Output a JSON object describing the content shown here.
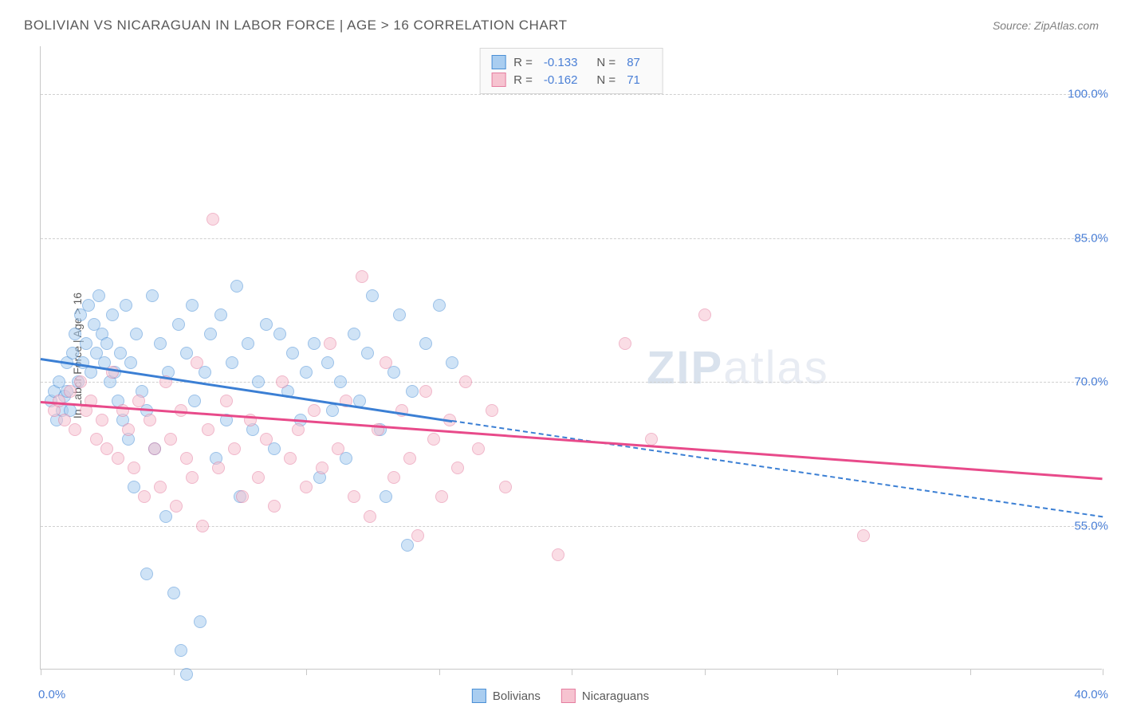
{
  "title": "BOLIVIAN VS NICARAGUAN IN LABOR FORCE | AGE > 16 CORRELATION CHART",
  "source_label": "Source:",
  "source_value": "ZipAtlas.com",
  "ylabel": "In Labor Force | Age > 16",
  "watermark_bold": "ZIP",
  "watermark_rest": "atlas",
  "chart": {
    "type": "scatter",
    "background_color": "#ffffff",
    "grid_color": "#d0d0d0",
    "axis_color": "#c8c8c8",
    "tick_label_color": "#4a7fd6",
    "tick_fontsize": 15,
    "label_fontsize": 14,
    "title_fontsize": 17,
    "xlim": [
      0,
      40
    ],
    "ylim": [
      40,
      105
    ],
    "ytick_values": [
      55,
      70,
      85,
      100
    ],
    "ytick_labels": [
      "55.0%",
      "70.0%",
      "85.0%",
      "100.0%"
    ],
    "xtick_values": [
      0,
      5,
      10,
      15,
      20,
      25,
      30,
      35,
      40
    ],
    "xtick_labels_shown": {
      "0": "0.0%",
      "40": "40.0%"
    },
    "marker_radius": 8,
    "marker_opacity": 0.55,
    "series": [
      {
        "name": "Bolivians",
        "fill_color": "#a9cdf0",
        "stroke_color": "#4a8fd6",
        "trend_color": "#3b7fd4",
        "legend_stats": {
          "R": "-0.133",
          "N": "87"
        },
        "trend": {
          "x1": 0,
          "y1": 72.5,
          "x2": 15.5,
          "y2": 66.0,
          "style": "solid"
        },
        "trend_ext": {
          "x1": 15.5,
          "y1": 66.0,
          "x2": 40,
          "y2": 56.0,
          "style": "dashed"
        },
        "points": [
          [
            0.4,
            68
          ],
          [
            0.5,
            69
          ],
          [
            0.6,
            66
          ],
          [
            0.7,
            70
          ],
          [
            0.8,
            67
          ],
          [
            0.9,
            68.5
          ],
          [
            1.0,
            72
          ],
          [
            1.0,
            69
          ],
          [
            1.1,
            67
          ],
          [
            1.2,
            73
          ],
          [
            1.3,
            75
          ],
          [
            1.4,
            70
          ],
          [
            1.5,
            77
          ],
          [
            1.6,
            72
          ],
          [
            1.7,
            74
          ],
          [
            1.8,
            78
          ],
          [
            1.9,
            71
          ],
          [
            2.0,
            76
          ],
          [
            2.1,
            73
          ],
          [
            2.2,
            79
          ],
          [
            2.3,
            75
          ],
          [
            2.4,
            72
          ],
          [
            2.5,
            74
          ],
          [
            2.6,
            70
          ],
          [
            2.7,
            77
          ],
          [
            2.8,
            71
          ],
          [
            2.9,
            68
          ],
          [
            3.0,
            73
          ],
          [
            3.1,
            66
          ],
          [
            3.2,
            78
          ],
          [
            3.3,
            64
          ],
          [
            3.4,
            72
          ],
          [
            3.5,
            59
          ],
          [
            3.6,
            75
          ],
          [
            3.8,
            69
          ],
          [
            4.0,
            67
          ],
          [
            4.2,
            79
          ],
          [
            4.3,
            63
          ],
          [
            4.5,
            74
          ],
          [
            4.7,
            56
          ],
          [
            4.8,
            71
          ],
          [
            5.0,
            48
          ],
          [
            5.2,
            76
          ],
          [
            5.3,
            42
          ],
          [
            5.5,
            73
          ],
          [
            5.7,
            78
          ],
          [
            5.8,
            68
          ],
          [
            6.0,
            45
          ],
          [
            6.2,
            71
          ],
          [
            6.4,
            75
          ],
          [
            6.6,
            62
          ],
          [
            6.8,
            77
          ],
          [
            7.0,
            66
          ],
          [
            7.2,
            72
          ],
          [
            7.4,
            80
          ],
          [
            7.5,
            58
          ],
          [
            7.8,
            74
          ],
          [
            8.0,
            65
          ],
          [
            8.2,
            70
          ],
          [
            8.5,
            76
          ],
          [
            8.8,
            63
          ],
          [
            9.0,
            75
          ],
          [
            9.3,
            69
          ],
          [
            9.5,
            73
          ],
          [
            9.8,
            66
          ],
          [
            10.0,
            71
          ],
          [
            10.3,
            74
          ],
          [
            10.5,
            60
          ],
          [
            10.8,
            72
          ],
          [
            11.0,
            67
          ],
          [
            11.3,
            70
          ],
          [
            11.5,
            62
          ],
          [
            11.8,
            75
          ],
          [
            12.0,
            68
          ],
          [
            12.3,
            73
          ],
          [
            12.5,
            79
          ],
          [
            12.8,
            65
          ],
          [
            13.0,
            58
          ],
          [
            13.3,
            71
          ],
          [
            13.5,
            77
          ],
          [
            13.8,
            53
          ],
          [
            14.0,
            69
          ],
          [
            14.5,
            74
          ],
          [
            15.0,
            78
          ],
          [
            15.5,
            72
          ],
          [
            4.0,
            50
          ],
          [
            5.5,
            39.5
          ]
        ]
      },
      {
        "name": "Nicaraguans",
        "fill_color": "#f6c3d0",
        "stroke_color": "#e57da0",
        "trend_color": "#e84a8a",
        "legend_stats": {
          "R": "-0.162",
          "N": "71"
        },
        "trend": {
          "x1": 0,
          "y1": 68.0,
          "x2": 40,
          "y2": 60.0,
          "style": "solid"
        },
        "points": [
          [
            0.5,
            67
          ],
          [
            0.7,
            68
          ],
          [
            0.9,
            66
          ],
          [
            1.1,
            69
          ],
          [
            1.3,
            65
          ],
          [
            1.5,
            70
          ],
          [
            1.7,
            67
          ],
          [
            1.9,
            68
          ],
          [
            2.1,
            64
          ],
          [
            2.3,
            66
          ],
          [
            2.5,
            63
          ],
          [
            2.7,
            71
          ],
          [
            2.9,
            62
          ],
          [
            3.1,
            67
          ],
          [
            3.3,
            65
          ],
          [
            3.5,
            61
          ],
          [
            3.7,
            68
          ],
          [
            3.9,
            58
          ],
          [
            4.1,
            66
          ],
          [
            4.3,
            63
          ],
          [
            4.5,
            59
          ],
          [
            4.7,
            70
          ],
          [
            4.9,
            64
          ],
          [
            5.1,
            57
          ],
          [
            5.3,
            67
          ],
          [
            5.5,
            62
          ],
          [
            5.7,
            60
          ],
          [
            5.9,
            72
          ],
          [
            6.1,
            55
          ],
          [
            6.3,
            65
          ],
          [
            6.5,
            87
          ],
          [
            6.7,
            61
          ],
          [
            7.0,
            68
          ],
          [
            7.3,
            63
          ],
          [
            7.6,
            58
          ],
          [
            7.9,
            66
          ],
          [
            8.2,
            60
          ],
          [
            8.5,
            64
          ],
          [
            8.8,
            57
          ],
          [
            9.1,
            70
          ],
          [
            9.4,
            62
          ],
          [
            9.7,
            65
          ],
          [
            10.0,
            59
          ],
          [
            10.3,
            67
          ],
          [
            10.6,
            61
          ],
          [
            10.9,
            74
          ],
          [
            11.2,
            63
          ],
          [
            11.5,
            68
          ],
          [
            11.8,
            58
          ],
          [
            12.1,
            81
          ],
          [
            12.4,
            56
          ],
          [
            12.7,
            65
          ],
          [
            13.0,
            72
          ],
          [
            13.3,
            60
          ],
          [
            13.6,
            67
          ],
          [
            13.9,
            62
          ],
          [
            14.2,
            54
          ],
          [
            14.5,
            69
          ],
          [
            14.8,
            64
          ],
          [
            15.1,
            58
          ],
          [
            15.4,
            66
          ],
          [
            15.7,
            61
          ],
          [
            16.0,
            70
          ],
          [
            16.5,
            63
          ],
          [
            17.0,
            67
          ],
          [
            17.5,
            59
          ],
          [
            19.5,
            52
          ],
          [
            22.0,
            74
          ],
          [
            23.0,
            64
          ],
          [
            25.0,
            77
          ],
          [
            31.0,
            54
          ]
        ]
      }
    ]
  },
  "legend_bottom": [
    {
      "label": "Bolivians",
      "fill": "#a9cdf0",
      "stroke": "#4a8fd6"
    },
    {
      "label": "Nicaraguans",
      "fill": "#f6c3d0",
      "stroke": "#e57da0"
    }
  ]
}
